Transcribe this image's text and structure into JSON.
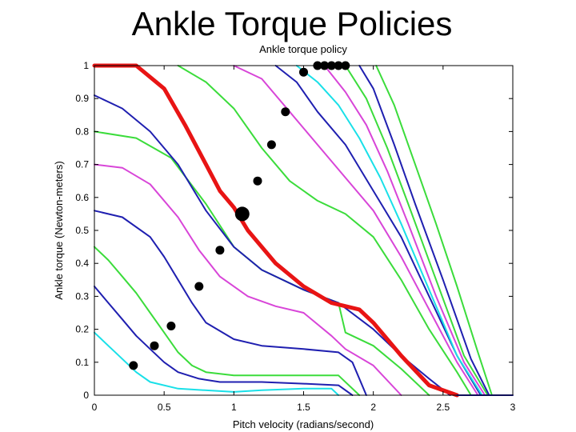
{
  "slide": {
    "title": "Ankle Torque Policies"
  },
  "chart_data": {
    "type": "line",
    "title": "Ankle torque policy",
    "xlabel": "Pitch velocity (radians/second)",
    "ylabel": "Ankle torque (Newton-meters)",
    "xlim": [
      0,
      3
    ],
    "ylim": [
      0,
      1
    ],
    "xticks": [
      "0",
      "0.5",
      "1",
      "1.5",
      "2",
      "2.5",
      "3"
    ],
    "yticks": [
      "0",
      "0.1",
      "0.2",
      "0.3",
      "0.4",
      "0.5",
      "0.6",
      "0.7",
      "0.8",
      "0.9",
      "1"
    ],
    "grid": false,
    "legend": "none",
    "colors": {
      "cyan": "#19e0e8",
      "blue": "#1f1fb0",
      "green": "#3bdc3b",
      "magenta": "#d845d8",
      "red": "#e81414",
      "marker": "#000000"
    },
    "series": [
      {
        "color": "cyan",
        "points": [
          [
            0,
            0.19
          ],
          [
            0.1,
            0.15
          ],
          [
            0.2,
            0.11
          ],
          [
            0.3,
            0.07
          ],
          [
            0.4,
            0.04
          ],
          [
            0.6,
            0.02
          ],
          [
            1.0,
            0.01
          ],
          [
            1.2,
            0.015
          ],
          [
            1.5,
            0.02
          ],
          [
            1.7,
            0.02
          ],
          [
            1.75,
            0.0
          ]
        ]
      },
      {
        "color": "blue",
        "points": [
          [
            0,
            0.33
          ],
          [
            0.1,
            0.28
          ],
          [
            0.2,
            0.23
          ],
          [
            0.3,
            0.18
          ],
          [
            0.4,
            0.14
          ],
          [
            0.5,
            0.1
          ],
          [
            0.6,
            0.07
          ],
          [
            0.75,
            0.05
          ],
          [
            0.9,
            0.04
          ],
          [
            1.2,
            0.04
          ],
          [
            1.5,
            0.035
          ],
          [
            1.75,
            0.03
          ],
          [
            1.85,
            0.0
          ]
        ]
      },
      {
        "color": "green",
        "points": [
          [
            0,
            0.45
          ],
          [
            0.1,
            0.41
          ],
          [
            0.2,
            0.36
          ],
          [
            0.3,
            0.31
          ],
          [
            0.4,
            0.25
          ],
          [
            0.5,
            0.19
          ],
          [
            0.6,
            0.13
          ],
          [
            0.7,
            0.09
          ],
          [
            0.8,
            0.07
          ],
          [
            1.0,
            0.06
          ],
          [
            1.3,
            0.06
          ],
          [
            1.6,
            0.06
          ],
          [
            1.75,
            0.06
          ],
          [
            1.9,
            0.0
          ]
        ]
      },
      {
        "color": "blue",
        "points": [
          [
            0,
            0.56
          ],
          [
            0.2,
            0.54
          ],
          [
            0.4,
            0.48
          ],
          [
            0.5,
            0.42
          ],
          [
            0.6,
            0.35
          ],
          [
            0.7,
            0.28
          ],
          [
            0.8,
            0.22
          ],
          [
            1.0,
            0.17
          ],
          [
            1.2,
            0.15
          ],
          [
            1.5,
            0.14
          ],
          [
            1.75,
            0.13
          ],
          [
            1.85,
            0.1
          ],
          [
            1.95,
            0.0
          ]
        ]
      },
      {
        "color": "magenta",
        "points": [
          [
            0,
            0.7
          ],
          [
            0.2,
            0.69
          ],
          [
            0.4,
            0.64
          ],
          [
            0.6,
            0.54
          ],
          [
            0.75,
            0.44
          ],
          [
            0.9,
            0.36
          ],
          [
            1.1,
            0.3
          ],
          [
            1.3,
            0.27
          ],
          [
            1.5,
            0.25
          ],
          [
            1.7,
            0.18
          ],
          [
            1.8,
            0.14
          ],
          [
            2.0,
            0.09
          ],
          [
            2.2,
            0.0
          ]
        ]
      },
      {
        "color": "green",
        "points": [
          [
            0,
            0.8
          ],
          [
            0.3,
            0.78
          ],
          [
            0.55,
            0.72
          ],
          [
            0.8,
            0.58
          ],
          [
            1.0,
            0.45
          ],
          [
            1.2,
            0.38
          ],
          [
            1.5,
            0.32
          ],
          [
            1.75,
            0.28
          ],
          [
            1.8,
            0.19
          ],
          [
            2.0,
            0.15
          ],
          [
            2.2,
            0.08
          ],
          [
            2.4,
            0.0
          ]
        ]
      },
      {
        "color": "blue",
        "points": [
          [
            0,
            0.91
          ],
          [
            0.2,
            0.87
          ],
          [
            0.4,
            0.8
          ],
          [
            0.6,
            0.7
          ],
          [
            0.8,
            0.56
          ],
          [
            1.0,
            0.45
          ],
          [
            1.2,
            0.38
          ],
          [
            1.5,
            0.32
          ],
          [
            1.75,
            0.28
          ],
          [
            2.0,
            0.2
          ],
          [
            2.2,
            0.12
          ],
          [
            2.4,
            0.05
          ],
          [
            2.55,
            0.0
          ]
        ]
      },
      {
        "color": "red",
        "bold": true,
        "points": [
          [
            0,
            1.0
          ],
          [
            0.3,
            1.0
          ],
          [
            0.5,
            0.93
          ],
          [
            0.65,
            0.82
          ],
          [
            0.8,
            0.7
          ],
          [
            0.9,
            0.62
          ],
          [
            1.0,
            0.57
          ],
          [
            1.1,
            0.5
          ],
          [
            1.3,
            0.4
          ],
          [
            1.5,
            0.33
          ],
          [
            1.7,
            0.28
          ],
          [
            1.9,
            0.26
          ],
          [
            2.0,
            0.22
          ],
          [
            2.2,
            0.12
          ],
          [
            2.4,
            0.03
          ],
          [
            2.6,
            0.0
          ]
        ]
      },
      {
        "color": "green",
        "points": [
          [
            0.6,
            1.0
          ],
          [
            0.8,
            0.95
          ],
          [
            1.0,
            0.87
          ],
          [
            1.2,
            0.75
          ],
          [
            1.4,
            0.65
          ],
          [
            1.6,
            0.59
          ],
          [
            1.8,
            0.55
          ],
          [
            2.0,
            0.48
          ],
          [
            2.2,
            0.35
          ],
          [
            2.4,
            0.2
          ],
          [
            2.6,
            0.07
          ],
          [
            2.7,
            0.0
          ]
        ]
      },
      {
        "color": "magenta",
        "points": [
          [
            1.0,
            1.0
          ],
          [
            1.2,
            0.96
          ],
          [
            1.4,
            0.86
          ],
          [
            1.6,
            0.76
          ],
          [
            1.8,
            0.66
          ],
          [
            2.0,
            0.56
          ],
          [
            2.2,
            0.42
          ],
          [
            2.4,
            0.26
          ],
          [
            2.6,
            0.1
          ],
          [
            2.75,
            0.0
          ]
        ]
      },
      {
        "color": "blue",
        "points": [
          [
            1.3,
            1.0
          ],
          [
            1.45,
            0.95
          ],
          [
            1.6,
            0.86
          ],
          [
            1.8,
            0.76
          ],
          [
            2.0,
            0.62
          ],
          [
            2.2,
            0.48
          ],
          [
            2.4,
            0.3
          ],
          [
            2.6,
            0.12
          ],
          [
            2.77,
            0.0
          ]
        ]
      },
      {
        "color": "cyan",
        "points": [
          [
            1.45,
            1.0
          ],
          [
            1.6,
            0.95
          ],
          [
            1.75,
            0.88
          ],
          [
            1.9,
            0.78
          ],
          [
            2.05,
            0.66
          ],
          [
            2.2,
            0.52
          ],
          [
            2.4,
            0.32
          ],
          [
            2.6,
            0.12
          ],
          [
            2.78,
            0.0
          ]
        ]
      },
      {
        "color": "magenta",
        "points": [
          [
            1.65,
            1.0
          ],
          [
            1.8,
            0.92
          ],
          [
            1.95,
            0.82
          ],
          [
            2.1,
            0.68
          ],
          [
            2.25,
            0.52
          ],
          [
            2.45,
            0.3
          ],
          [
            2.65,
            0.1
          ],
          [
            2.8,
            0.0
          ]
        ]
      },
      {
        "color": "green",
        "points": [
          [
            1.8,
            1.0
          ],
          [
            1.95,
            0.9
          ],
          [
            2.1,
            0.75
          ],
          [
            2.25,
            0.58
          ],
          [
            2.45,
            0.35
          ],
          [
            2.65,
            0.12
          ],
          [
            2.82,
            0.0
          ]
        ]
      },
      {
        "color": "blue",
        "points": [
          [
            1.9,
            1.0
          ],
          [
            2.0,
            0.93
          ],
          [
            2.15,
            0.76
          ],
          [
            2.3,
            0.58
          ],
          [
            2.5,
            0.35
          ],
          [
            2.7,
            0.11
          ],
          [
            2.83,
            0.0
          ]
        ]
      },
      {
        "color": "green",
        "points": [
          [
            2.02,
            1.0
          ],
          [
            2.15,
            0.88
          ],
          [
            2.3,
            0.7
          ],
          [
            2.45,
            0.52
          ],
          [
            2.6,
            0.33
          ],
          [
            2.75,
            0.13
          ],
          [
            2.85,
            0.0
          ]
        ]
      },
      {
        "color": "blue",
        "points": [
          [
            2.6,
            0.0
          ],
          [
            3.0,
            0.0
          ]
        ]
      }
    ],
    "markers": [
      {
        "x": 0.28,
        "y": 0.09
      },
      {
        "x": 0.43,
        "y": 0.15
      },
      {
        "x": 0.55,
        "y": 0.21
      },
      {
        "x": 0.75,
        "y": 0.33
      },
      {
        "x": 0.9,
        "y": 0.44
      },
      {
        "x": 1.06,
        "y": 0.55,
        "large": true
      },
      {
        "x": 1.17,
        "y": 0.65
      },
      {
        "x": 1.27,
        "y": 0.76
      },
      {
        "x": 1.37,
        "y": 0.86
      },
      {
        "x": 1.5,
        "y": 0.98
      },
      {
        "x": 1.6,
        "y": 1.0
      },
      {
        "x": 1.65,
        "y": 1.0
      },
      {
        "x": 1.7,
        "y": 1.0
      },
      {
        "x": 1.75,
        "y": 1.0
      },
      {
        "x": 1.8,
        "y": 1.0
      }
    ]
  }
}
